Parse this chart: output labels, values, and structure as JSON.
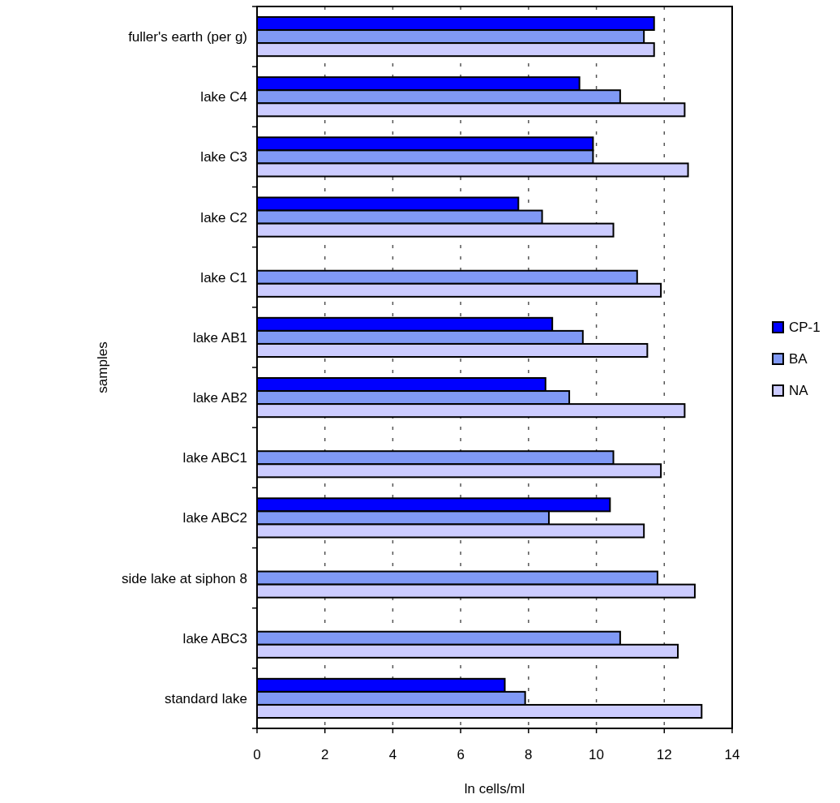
{
  "chart_data": {
    "type": "bar",
    "orientation": "horizontal",
    "xlabel": "ln cells/ml",
    "ylabel": "samples",
    "categories": [
      "fuller's earth (per g)",
      "lake C4",
      "lake C3",
      "lake C2",
      "lake C1",
      "lake AB1",
      "lake AB2",
      "lake ABC1",
      "lake ABC2",
      "side lake at siphon 8",
      "lake ABC3",
      "standard lake"
    ],
    "series": [
      {
        "name": "CP-1",
        "color": "#0000ff",
        "values": [
          11.7,
          9.5,
          9.9,
          7.7,
          null,
          8.7,
          8.5,
          null,
          10.4,
          null,
          null,
          7.3
        ]
      },
      {
        "name": "BA",
        "color": "#8099f5",
        "values": [
          11.4,
          10.7,
          9.9,
          8.4,
          11.2,
          9.6,
          9.2,
          10.5,
          8.6,
          11.8,
          10.7,
          7.9
        ]
      },
      {
        "name": "NA",
        "color": "#ccccff",
        "values": [
          11.7,
          12.6,
          12.7,
          10.5,
          11.9,
          11.5,
          12.6,
          11.9,
          11.4,
          12.9,
          12.4,
          13.1
        ]
      }
    ],
    "xlim": [
      0,
      14
    ],
    "xticks": [
      0,
      2,
      4,
      6,
      8,
      10,
      12,
      14
    ],
    "grid": "x",
    "legend": "right"
  }
}
